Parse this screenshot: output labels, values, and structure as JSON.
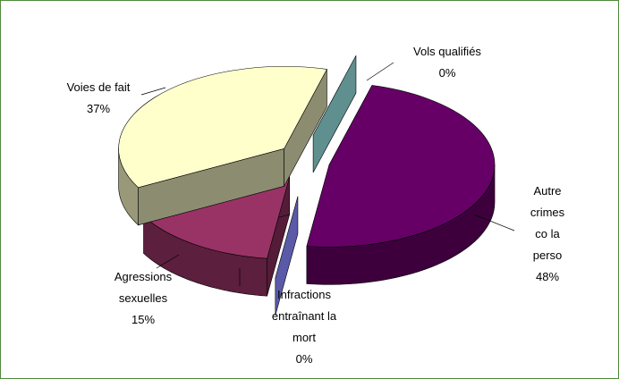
{
  "chart_data": {
    "type": "pie",
    "categories": [
      "Vols qualifiés",
      "Autre crimes co la perso",
      "Infractions entraînant la mort",
      "Agressions sexuelles",
      "Voies de fait"
    ],
    "values": [
      0,
      48,
      0,
      15,
      37
    ],
    "value_labels": [
      "0%",
      "48%",
      "0%",
      "15%",
      "37%"
    ],
    "colors": [
      "#5f8f8f",
      "#660066",
      "#5a5aa8",
      "#993366",
      "#ffffcc"
    ]
  }
}
